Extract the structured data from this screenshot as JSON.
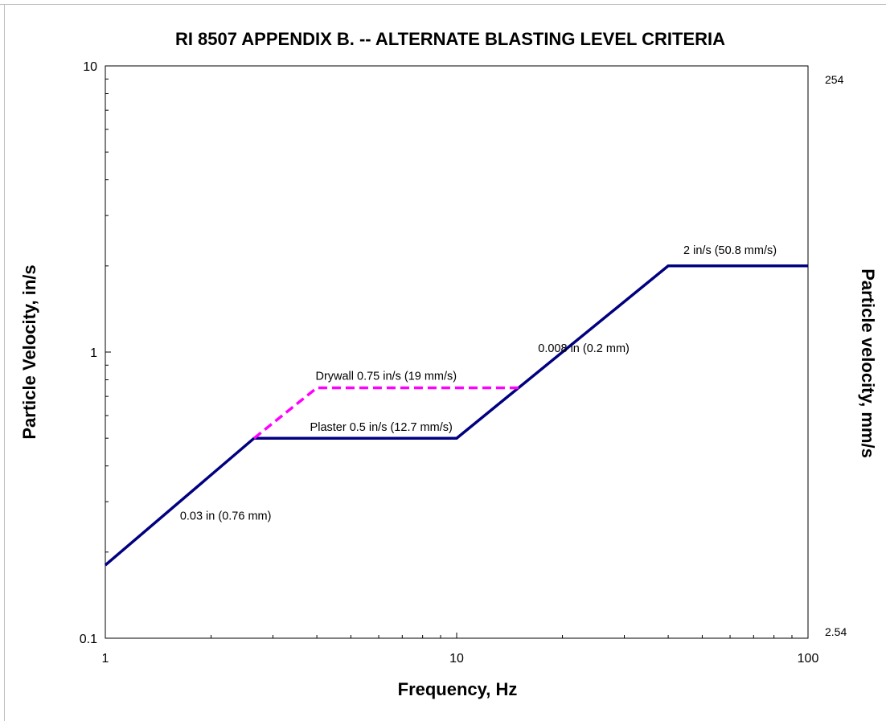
{
  "chart_data": {
    "type": "line",
    "title": "RI 8507 APPENDIX B. -- ALTERNATE BLASTING LEVEL CRITERIA",
    "xlabel": "Frequency, Hz",
    "ylabel": "Particle Velocity, in/s",
    "ylabel_right": "Particle velocity, mm/s",
    "x_scale": "log",
    "y_scale": "log",
    "xlim": [
      1,
      100
    ],
    "ylim": [
      0.1,
      10
    ],
    "x_ticks": [
      "1",
      "10",
      "100"
    ],
    "y_ticks": [
      "0.1",
      "1",
      "10"
    ],
    "y_right_ticks": [
      "2.54",
      "254"
    ],
    "grid": false,
    "series": [
      {
        "color": "#000080",
        "style": "solid",
        "points": [
          [
            1,
            0.18
          ],
          [
            2.65,
            0.5
          ],
          [
            10,
            0.5
          ],
          [
            40,
            2.0
          ],
          [
            100,
            2.0
          ]
        ]
      },
      {
        "color": "#ff00ff",
        "style": "dashed",
        "points": [
          [
            2.65,
            0.5
          ],
          [
            4.0,
            0.75
          ],
          [
            15.0,
            0.75
          ]
        ]
      }
    ],
    "annotations": [
      {
        "text": "2 in/s (50.8 mm/s)",
        "x": 60,
        "y": 2.2
      },
      {
        "text": "0.008 in (0.2 mm)",
        "x": 23,
        "y": 1.0
      },
      {
        "text": "Drywall 0.75 in/s (19 mm/s)",
        "x": 6.3,
        "y": 0.8
      },
      {
        "text": "Plaster 0.5 in/s (12.7 mm/s)",
        "x": 6.1,
        "y": 0.53
      },
      {
        "text": "0.03 in (0.76 mm)",
        "x": 2.2,
        "y": 0.26
      }
    ]
  }
}
